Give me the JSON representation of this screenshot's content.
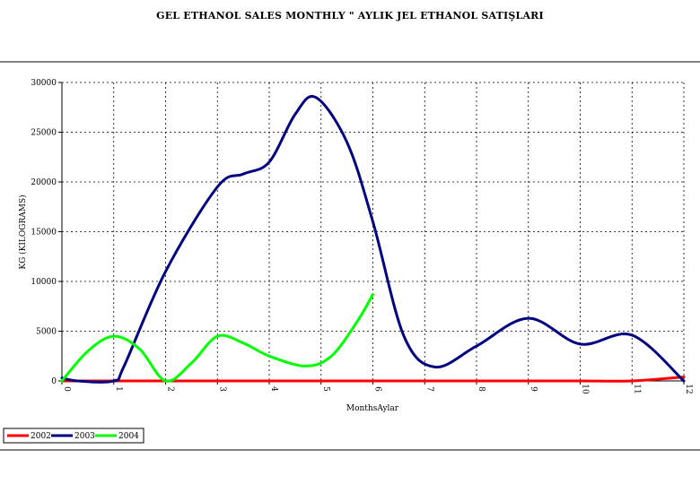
{
  "chart_data": {
    "type": "line",
    "title": "GEL ETHANOL SALES MONTHLY \" AYLIK JEL ETHANOL SATIŞLARI",
    "xlabel": "MonthsAylar",
    "ylabel": "KG (KILOGRAMS)",
    "x_ticks": [
      "0",
      "1",
      "2",
      "3",
      "4",
      "5",
      "6",
      "7",
      "8",
      "9",
      "10",
      "11",
      "12"
    ],
    "y_ticks": [
      "0",
      "5000",
      "10000",
      "15000",
      "20000",
      "25000",
      "30000"
    ],
    "xlim": [
      0,
      12
    ],
    "ylim": [
      0,
      30000
    ],
    "grid": true,
    "legend_position": "bottom-left",
    "series": [
      {
        "name": "2002",
        "color": "#ff0000",
        "x": [
          0,
          1,
          2,
          3,
          4,
          5,
          6,
          7,
          8,
          9,
          10,
          11,
          12
        ],
        "y": [
          0,
          0,
          0,
          0,
          0,
          0,
          0,
          0,
          0,
          0,
          0,
          0,
          400
        ]
      },
      {
        "name": "2003",
        "color": "#000080",
        "x": [
          0,
          0.3,
          1,
          1.2,
          2,
          3,
          3.5,
          4,
          4.5,
          4.9,
          5.5,
          6,
          6.6,
          7.2,
          8,
          9,
          10,
          11,
          12
        ],
        "y": [
          300,
          0,
          0,
          1500,
          11000,
          19500,
          20800,
          22000,
          26800,
          28500,
          24000,
          16000,
          4500,
          1400,
          3500,
          6300,
          3700,
          4600,
          0
        ]
      },
      {
        "name": "2004",
        "color": "#00ff00",
        "x": [
          0,
          0.5,
          1,
          1.5,
          2,
          2.5,
          3,
          3.5,
          4,
          4.7,
          5.2,
          5.7,
          6
        ],
        "y": [
          0,
          3000,
          4500,
          3200,
          0,
          1800,
          4500,
          3800,
          2500,
          1500,
          2500,
          6000,
          8700
        ]
      }
    ]
  }
}
